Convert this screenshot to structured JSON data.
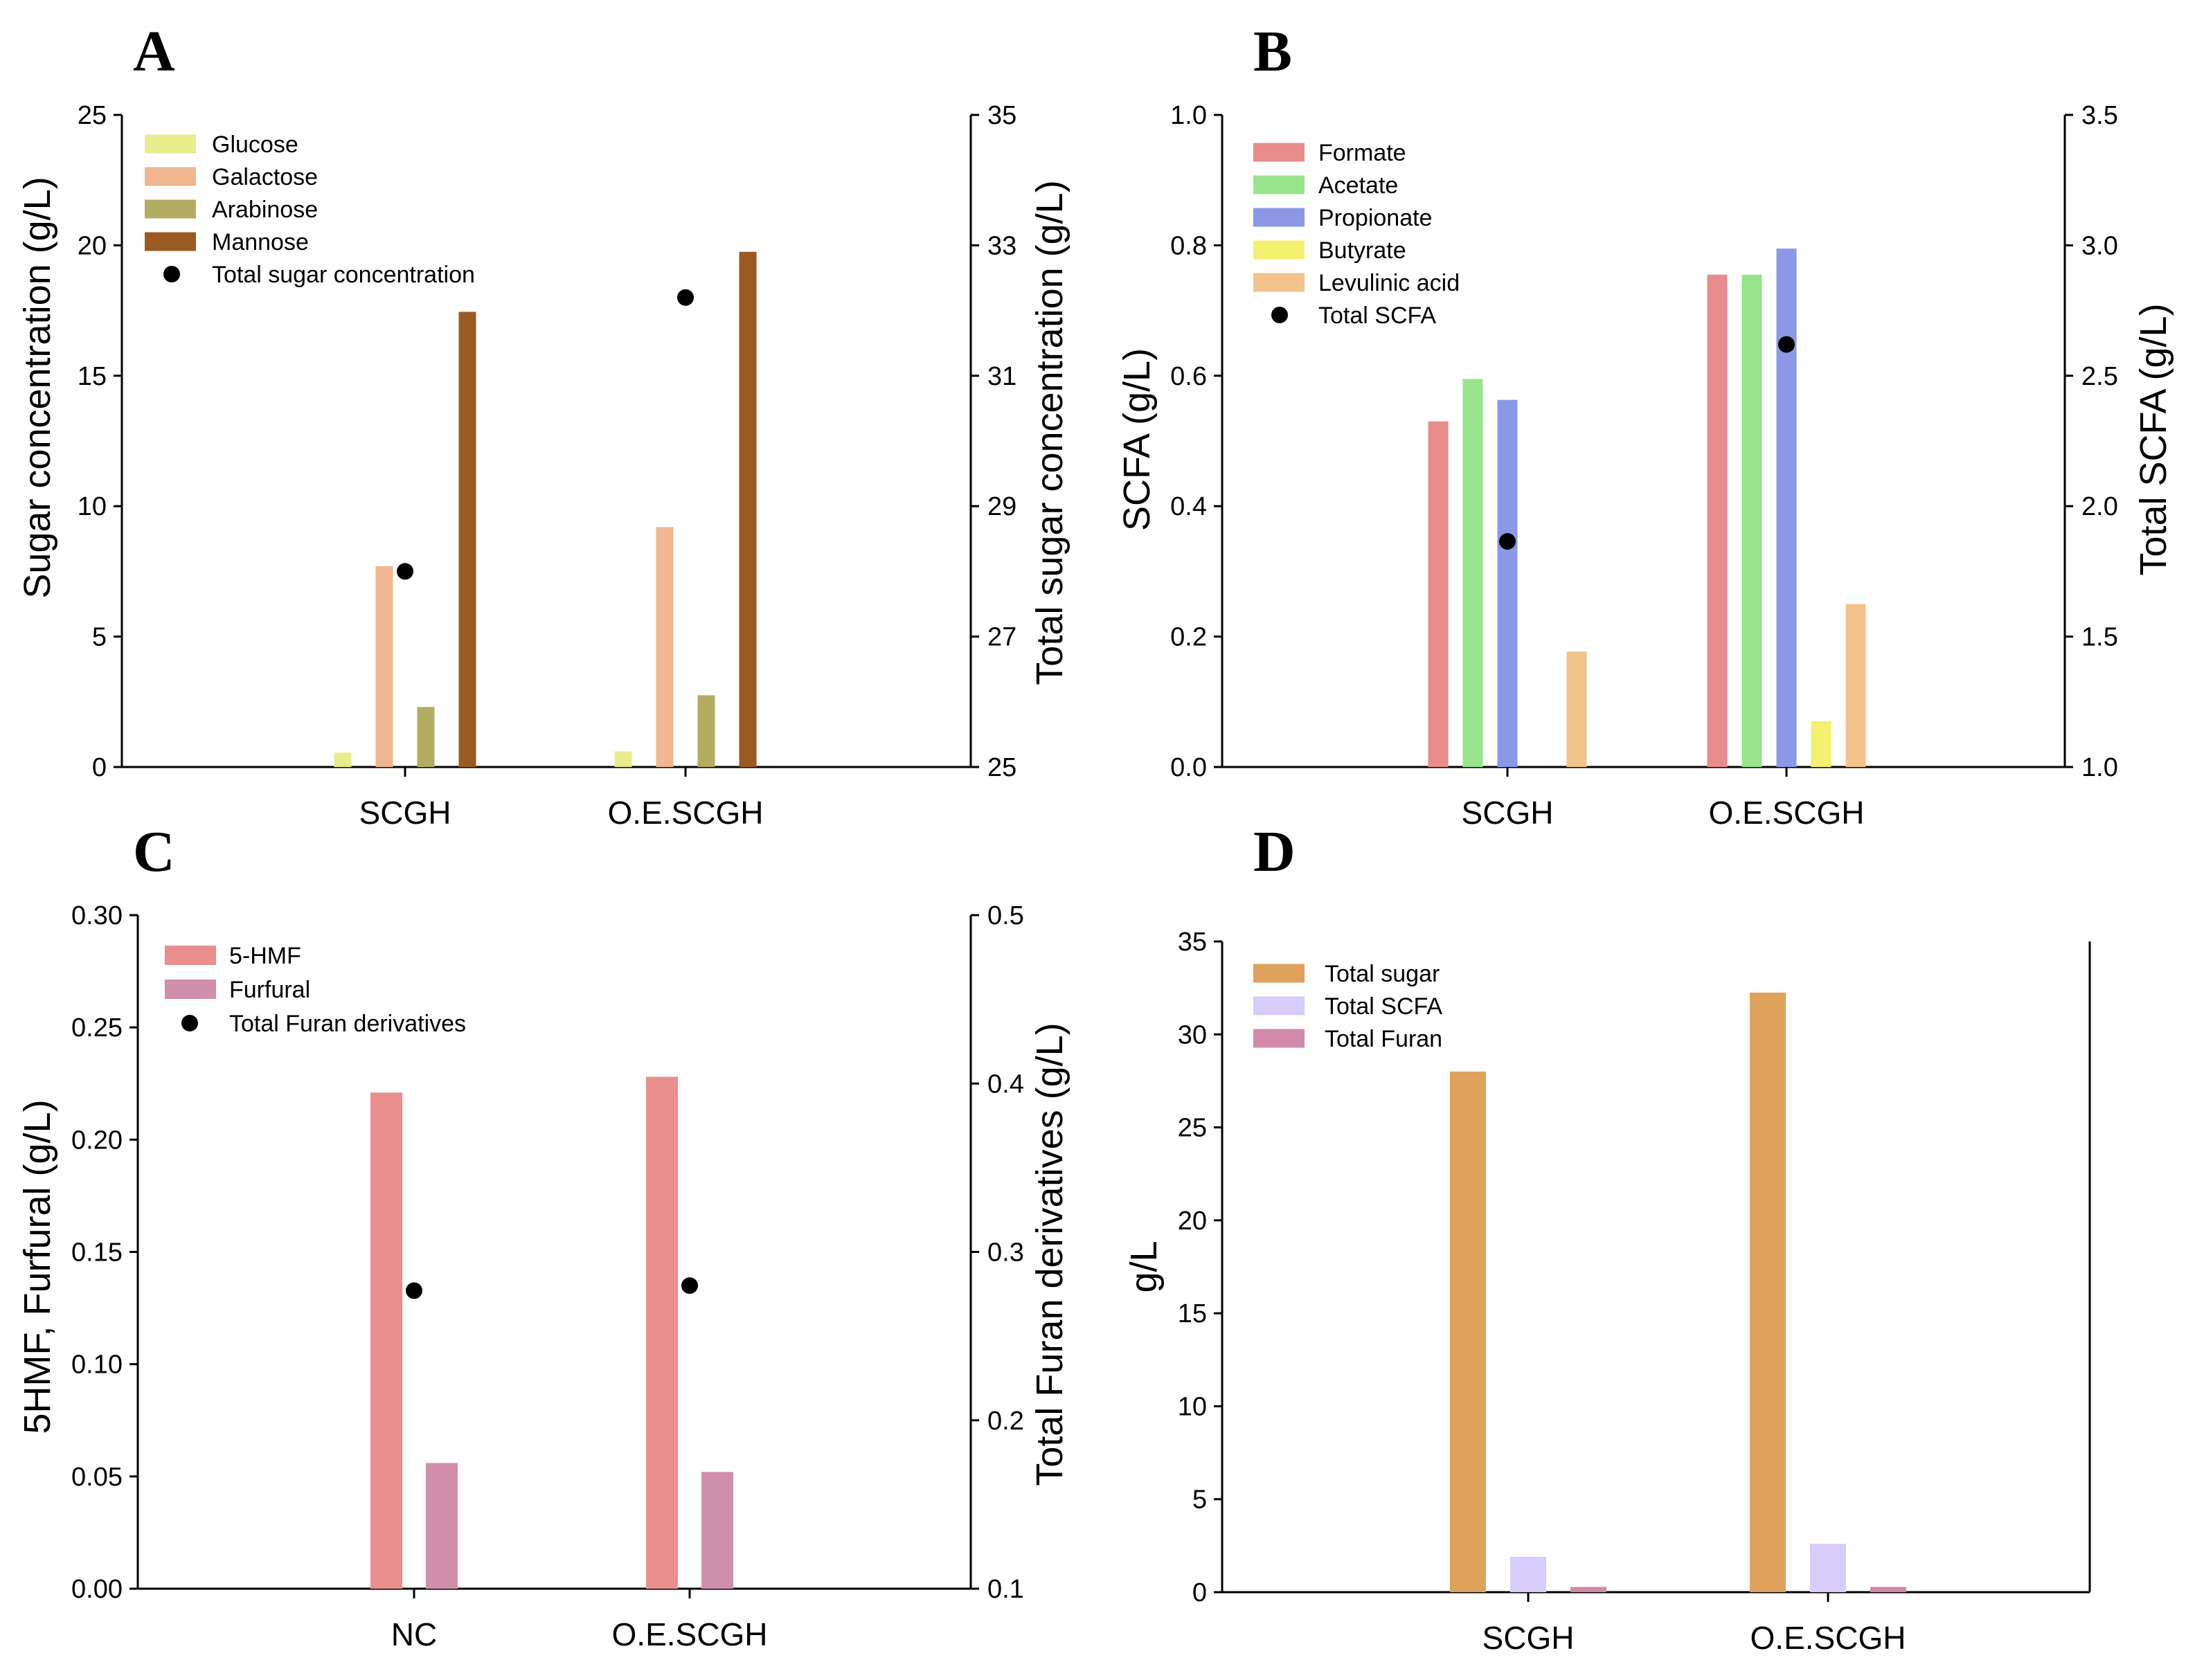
{
  "chart_data": [
    {
      "panel": "A",
      "type": "bar",
      "categories": [
        "SCGH",
        "O.E.SCGH"
      ],
      "series": [
        {
          "name": "Glucose",
          "color": "#e8ec8c",
          "values": [
            0.55,
            0.6
          ]
        },
        {
          "name": "Galactose",
          "color": "#efb690",
          "values": [
            7.7,
            9.2
          ]
        },
        {
          "name": "Arabinose",
          "color": "#b3ad62",
          "values": [
            2.3,
            2.75
          ]
        },
        {
          "name": "Mannose",
          "color": "#9a5a22",
          "values": [
            17.45,
            19.75
          ]
        }
      ],
      "points": {
        "name": "Total sugar concentration",
        "values": [
          28.0,
          32.2
        ]
      },
      "ylabel": "Sugar concentration (g/L)",
      "y2label": "Total sugar concentration (g/L)",
      "ylim": [
        0,
        25
      ],
      "y2lim": [
        25,
        35
      ],
      "yticks": [
        "0",
        "5",
        "10",
        "15",
        "20",
        "25"
      ],
      "y2ticks": [
        "25",
        "27",
        "29",
        "31",
        "33",
        "35"
      ]
    },
    {
      "panel": "B",
      "type": "bar",
      "categories": [
        "SCGH",
        "O.E.SCGH"
      ],
      "series": [
        {
          "name": "Formate",
          "color": "#e88c8c",
          "values": [
            0.53,
            0.755
          ]
        },
        {
          "name": "Acetate",
          "color": "#98e48c",
          "values": [
            0.595,
            0.755
          ]
        },
        {
          "name": "Propionate",
          "color": "#8a98e6",
          "values": [
            0.563,
            0.795
          ]
        },
        {
          "name": "Butyrate",
          "color": "#f4f070",
          "values": [
            0.0,
            0.07
          ]
        },
        {
          "name": "Levulinic acid",
          "color": "#f0c48a",
          "values": [
            0.177,
            0.25
          ]
        }
      ],
      "points": {
        "name": "Total SCFA",
        "values": [
          1.865,
          2.62
        ]
      },
      "ylabel": "SCFA (g/L)",
      "y2label": "Total SCFA (g/L)",
      "ylim": [
        0,
        1.0
      ],
      "y2lim": [
        1.0,
        3.5
      ],
      "yticks": [
        "0.0",
        "0.2",
        "0.4",
        "0.6",
        "0.8",
        "1.0"
      ],
      "y2ticks": [
        "1.0",
        "1.5",
        "2.0",
        "2.5",
        "3.0",
        "3.5"
      ]
    },
    {
      "panel": "C",
      "type": "bar",
      "categories": [
        "NC",
        "O.E.SCGH"
      ],
      "series": [
        {
          "name": "5-HMF",
          "color": "#ea8e8e",
          "values": [
            0.221,
            0.228
          ]
        },
        {
          "name": "Furfural",
          "color": "#d08fab",
          "values": [
            0.056,
            0.052
          ]
        }
      ],
      "points": {
        "name": "Total Furan derivatives",
        "values": [
          0.277,
          0.28
        ]
      },
      "ylabel": "5HMF, Furfural (g/L)",
      "y2label": "Total Furan derivatives (g/L)",
      "ylim": [
        0,
        0.3
      ],
      "y2lim": [
        0.1,
        0.5
      ],
      "yticks": [
        "0.00",
        "0.05",
        "0.10",
        "0.15",
        "0.20",
        "0.25",
        "0.30"
      ],
      "y2ticks": [
        "0.1",
        "0.2",
        "0.3",
        "0.4",
        "0.5"
      ]
    },
    {
      "panel": "D",
      "type": "bar",
      "categories": [
        "SCGH",
        "O.E.SCGH"
      ],
      "series": [
        {
          "name": "Total sugar",
          "color": "#dfa25c",
          "values": [
            28.0,
            32.25
          ]
        },
        {
          "name": "Total SCFA",
          "color": "#d8ccfa",
          "values": [
            1.9,
            2.6
          ]
        },
        {
          "name": "Total Furan",
          "color": "#d28aaa",
          "values": [
            0.28,
            0.28
          ]
        }
      ],
      "ylabel": "g/L",
      "ylim": [
        0,
        35
      ],
      "yticks": [
        "0",
        "5",
        "10",
        "15",
        "20",
        "25",
        "30",
        "35"
      ]
    }
  ]
}
